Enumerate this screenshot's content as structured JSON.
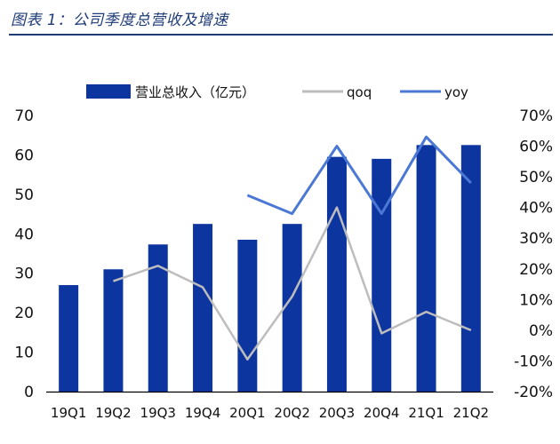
{
  "header": {
    "figure_title": "图表 1：公司季度总营收及增速"
  },
  "watermark": "",
  "chart_data": {
    "type": "bar",
    "categories": [
      "19Q1",
      "19Q2",
      "19Q3",
      "19Q4",
      "20Q1",
      "20Q2",
      "20Q3",
      "20Q4",
      "21Q1",
      "21Q2"
    ],
    "series": [
      {
        "name": "营业总收入（亿元）",
        "type": "bar",
        "axis": "left",
        "values": [
          27.0,
          31.0,
          37.3,
          42.5,
          38.5,
          42.5,
          59.5,
          59.0,
          62.5,
          62.5
        ]
      },
      {
        "name": "qoq",
        "type": "line",
        "axis": "right",
        "values": [
          null,
          0.16,
          0.21,
          0.14,
          -0.095,
          0.11,
          0.4,
          -0.01,
          0.06,
          0.0
        ]
      },
      {
        "name": "yoy",
        "type": "line",
        "axis": "right",
        "values": [
          null,
          null,
          null,
          null,
          0.44,
          0.38,
          0.6,
          0.38,
          0.63,
          0.48
        ]
      }
    ],
    "y_left": {
      "min": 0,
      "max": 70,
      "ticks": [
        "0",
        "10",
        "20",
        "30",
        "40",
        "50",
        "60",
        "70"
      ]
    },
    "y_right": {
      "min": -0.2,
      "max": 0.7,
      "ticks": [
        "-20%",
        "-10%",
        "0%",
        "10%",
        "20%",
        "30%",
        "40%",
        "50%",
        "60%",
        "70%"
      ]
    },
    "legend_position": "top",
    "colors": {
      "bar": "#0d35a0",
      "qoq": "#bdbdbd",
      "yoy": "#4a78d4"
    }
  }
}
